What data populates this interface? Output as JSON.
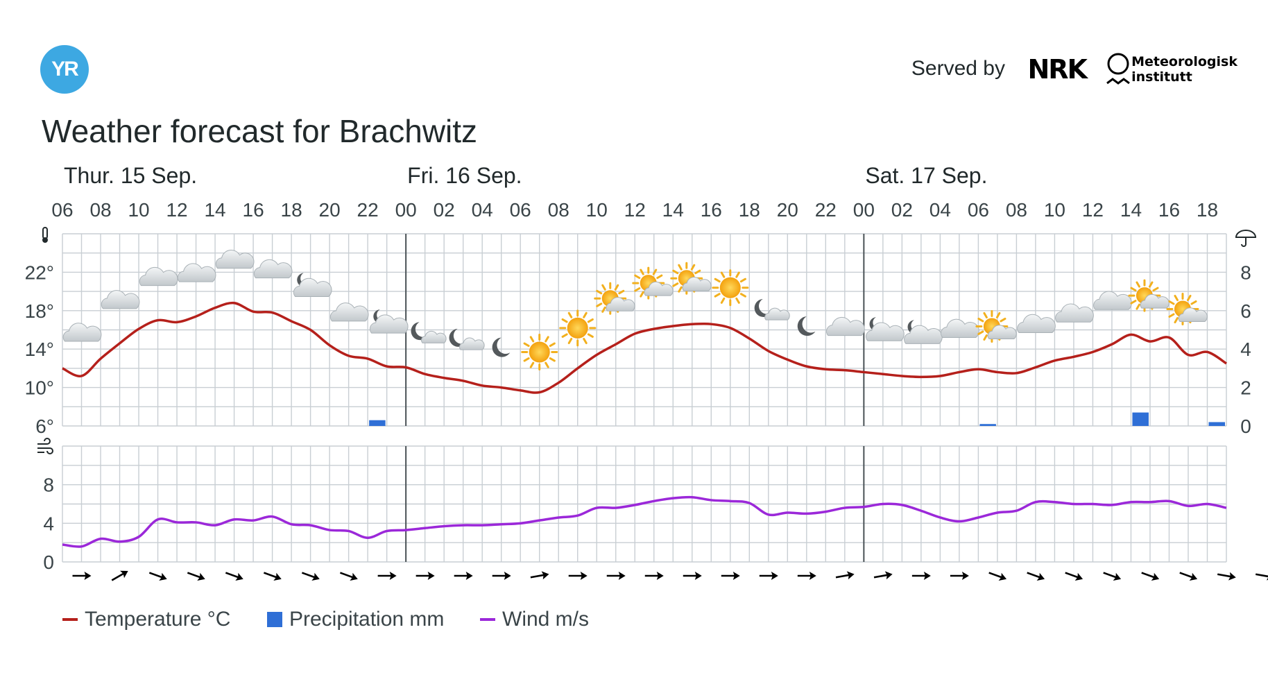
{
  "header": {
    "logo_text": "YR",
    "served_by": "Served by",
    "nrk_logo": "NRK",
    "met_line1": "Meteorologisk",
    "met_line2": "institutt"
  },
  "title": "Weather forecast for Brachwitz",
  "colors": {
    "temperature": "#b5201b",
    "precipitation": "#2f6fd6",
    "wind": "#9b28d9",
    "grid": "#c8ced3"
  },
  "chart_data": {
    "type": "line",
    "days": [
      {
        "label": "Thur. 15 Sep.",
        "start_index": 0
      },
      {
        "label": "Fri. 16 Sep.",
        "start_index": 18
      },
      {
        "label": "Sat. 17 Sep.",
        "start_index": 42
      }
    ],
    "hour_labels": [
      "06",
      "08",
      "10",
      "12",
      "14",
      "16",
      "18",
      "20",
      "22",
      "00",
      "02",
      "04",
      "06",
      "08",
      "10",
      "12",
      "14",
      "16",
      "18",
      "20",
      "22",
      "00",
      "02",
      "04",
      "06",
      "08",
      "10",
      "12",
      "14",
      "16",
      "18"
    ],
    "temperature": {
      "name": "Temperature °C",
      "ylim": [
        6,
        26
      ],
      "ticks": [
        "22°",
        "18°",
        "14°",
        "10°",
        "6°"
      ],
      "values": [
        12.0,
        11.2,
        13.0,
        14.6,
        16.1,
        17.0,
        16.8,
        17.4,
        18.3,
        18.8,
        17.9,
        17.8,
        16.9,
        16.0,
        14.4,
        13.3,
        13.0,
        12.2,
        12.1,
        11.4,
        11.0,
        10.7,
        10.2,
        10.0,
        9.7,
        9.5,
        10.5,
        12.0,
        13.4,
        14.5,
        15.6,
        16.1,
        16.4,
        16.6,
        16.6,
        16.2,
        15.1,
        13.8,
        12.9,
        12.2,
        11.9,
        11.8,
        11.6,
        11.4,
        11.2,
        11.1,
        11.2,
        11.6,
        11.9,
        11.6,
        11.5,
        12.1,
        12.8,
        13.2,
        13.7,
        14.5,
        15.5,
        14.8,
        15.2,
        13.4,
        13.7,
        12.5
      ]
    },
    "precipitation": {
      "name": "Precipitation mm",
      "ylim": [
        0,
        10
      ],
      "ticks": [
        "8",
        "6",
        "4",
        "2",
        "0"
      ],
      "bars": [
        {
          "index": 16,
          "value": 0.3
        },
        {
          "index": 48,
          "value": 0.1
        },
        {
          "index": 56,
          "value": 0.7
        },
        {
          "index": 60,
          "value": 0.2
        }
      ]
    },
    "wind": {
      "name": "Wind m/s",
      "ylim": [
        0,
        12
      ],
      "ticks": [
        "8",
        "4",
        "0"
      ],
      "values": [
        1.8,
        1.6,
        2.4,
        2.1,
        2.6,
        4.4,
        4.1,
        4.1,
        3.8,
        4.4,
        4.3,
        4.7,
        3.9,
        3.8,
        3.3,
        3.2,
        2.5,
        3.2,
        3.3,
        3.5,
        3.7,
        3.8,
        3.8,
        3.9,
        4.0,
        4.3,
        4.6,
        4.8,
        5.6,
        5.6,
        5.9,
        6.3,
        6.6,
        6.7,
        6.4,
        6.3,
        6.1,
        4.9,
        5.1,
        5.0,
        5.2,
        5.6,
        5.7,
        6.0,
        5.9,
        5.3,
        4.6,
        4.2,
        4.6,
        5.1,
        5.3,
        6.2,
        6.2,
        6.0,
        6.0,
        5.9,
        6.2,
        6.2,
        6.3,
        5.8,
        6.0,
        5.6
      ]
    },
    "symbols": [
      "cloud",
      "cloud",
      "cloud",
      "cloud",
      "cloud",
      "cloud",
      "night-cloud",
      "cloud",
      "night-cloud",
      "night-partly",
      "night-partly",
      "moon",
      "sun",
      "sun",
      "sun-cloud",
      "sun-cloud",
      "sun-cloud",
      "sun",
      "night-partly",
      "moon",
      "cloud",
      "night-cloud",
      "night-cloud",
      "cloud",
      "sun-cloud",
      "cloud",
      "cloud",
      "cloud",
      "sun-cloud",
      "sun-cloud"
    ],
    "wind_arrows_deg": [
      0,
      -30,
      20,
      20,
      20,
      20,
      20,
      20,
      0,
      0,
      0,
      0,
      -10,
      0,
      0,
      0,
      0,
      0,
      0,
      0,
      -10,
      -10,
      0,
      0,
      20,
      20,
      20,
      20,
      20,
      20,
      10,
      10
    ]
  },
  "legend": {
    "temperature": "Temperature °C",
    "precipitation": "Precipitation mm",
    "wind": "Wind m/s"
  }
}
